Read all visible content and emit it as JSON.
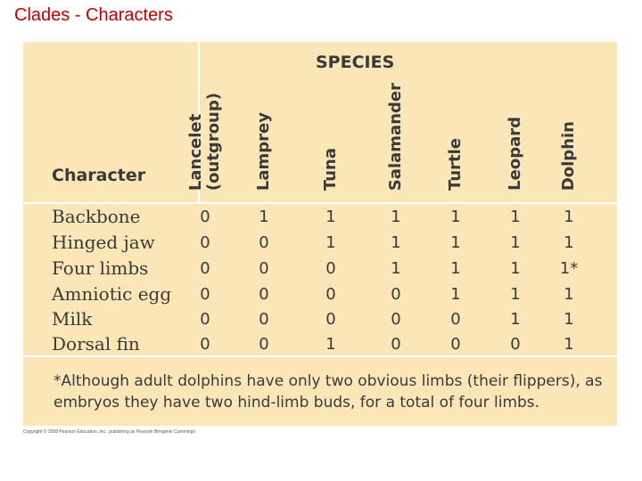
{
  "slide": {
    "title": "Clades -  Characters"
  },
  "table": {
    "species_heading": "SPECIES",
    "character_heading": "Character",
    "species": [
      "Lancelet\n(outgroup)",
      "Lamprey",
      "Tuna",
      "Salamander",
      "Turtle",
      "Leopard",
      "Dolphin"
    ],
    "rows": [
      {
        "character": "Backbone",
        "values": [
          "0",
          "1",
          "1",
          "1",
          "1",
          "1",
          "1"
        ]
      },
      {
        "character": "Hinged jaw",
        "values": [
          "0",
          "0",
          "1",
          "1",
          "1",
          "1",
          "1"
        ]
      },
      {
        "character": "Four limbs",
        "values": [
          "0",
          "0",
          "0",
          "1",
          "1",
          "1",
          "1*"
        ]
      },
      {
        "character": "Amniotic egg",
        "values": [
          "0",
          "0",
          "0",
          "0",
          "1",
          "1",
          "1"
        ]
      },
      {
        "character": "Milk",
        "values": [
          "0",
          "0",
          "0",
          "0",
          "0",
          "1",
          "1"
        ]
      },
      {
        "character": "Dorsal fin",
        "values": [
          "0",
          "0",
          "1",
          "0",
          "0",
          "0",
          "1"
        ]
      }
    ],
    "footnote": "*Although adult dolphins have only two obvious limbs (their flippers), as embryos they have two hind-limb buds, for a total of four limbs."
  },
  "copyright": "Copyright © 2008 Pearson Education, Inc., publishing as Pearson Benjamin Cummings",
  "colors": {
    "title": "#c00000",
    "panel": "#fae6b6",
    "text": "#3a3a3a"
  }
}
